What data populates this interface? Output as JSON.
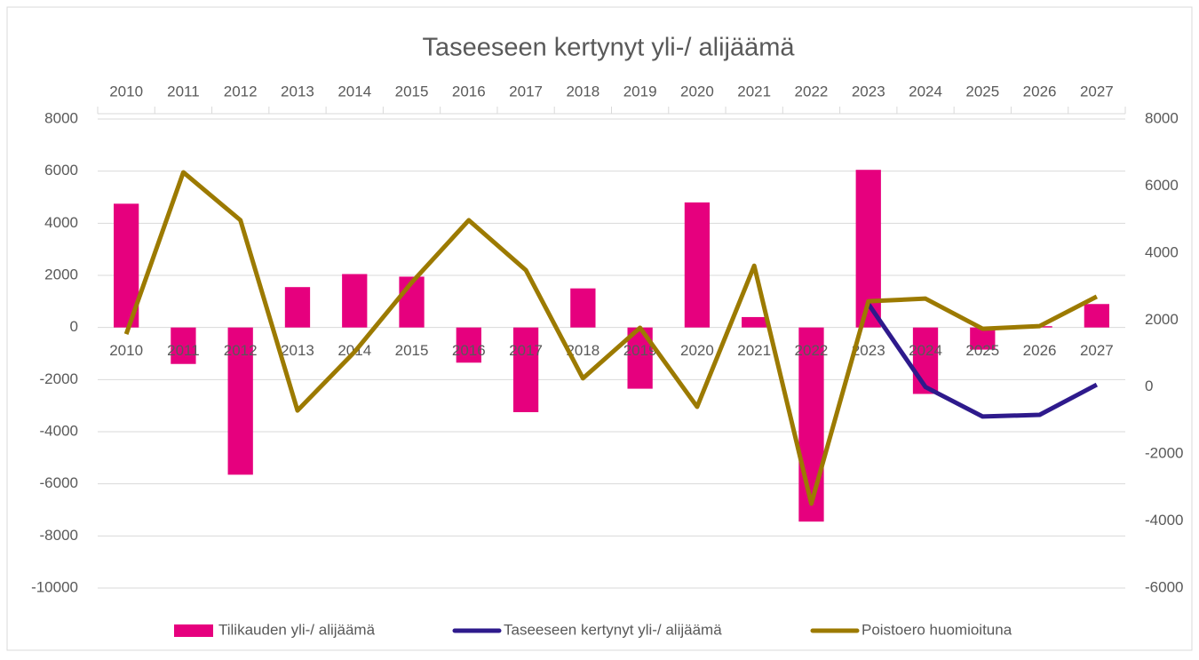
{
  "chart_data": {
    "type": "bar",
    "title": "Taseeseen kertynyt yli-/ alijäämä",
    "categories": [
      "2010",
      "2011",
      "2012",
      "2013",
      "2014",
      "2015",
      "2016",
      "2017",
      "2018",
      "2019",
      "2020",
      "2021",
      "2022",
      "2023",
      "2024",
      "2025",
      "2026",
      "2027"
    ],
    "series": [
      {
        "name": "Tilikauden yli-/ alijäämä",
        "type": "bar",
        "color": "#e6007e",
        "axis": "y",
        "values": [
          4750,
          -1400,
          -5650,
          1550,
          2050,
          1950,
          -1350,
          -3250,
          1500,
          -2350,
          4800,
          400,
          -7450,
          6050,
          -2550,
          -850,
          50,
          900
        ]
      },
      {
        "name": "Taseeseen kertynyt yli-/ alijäämä",
        "type": "line",
        "color": "#2e1a8c",
        "axis": "y2",
        "values": [
          null,
          null,
          null,
          null,
          null,
          null,
          null,
          null,
          null,
          null,
          null,
          null,
          null,
          2480,
          0,
          -880,
          -830,
          70
        ]
      },
      {
        "name": "Poistoero huomioituna",
        "type": "line",
        "color": "#9c7a00",
        "axis": "y2",
        "values": [
          1580,
          6410,
          4980,
          -700,
          1050,
          3120,
          4980,
          3490,
          260,
          1770,
          -590,
          3620,
          -3480,
          2560,
          2640,
          1740,
          1820,
          2700
        ]
      }
    ],
    "ylim": [
      -10000,
      8000
    ],
    "yticks": [
      -10000,
      -8000,
      -6000,
      -4000,
      -2000,
      0,
      2000,
      4000,
      6000,
      8000
    ],
    "y2lim": [
      -6000,
      8000
    ],
    "y2ticks": [
      -6000,
      -4000,
      -2000,
      0,
      2000,
      4000,
      6000,
      8000
    ],
    "grid": true,
    "legend": "bottom"
  }
}
